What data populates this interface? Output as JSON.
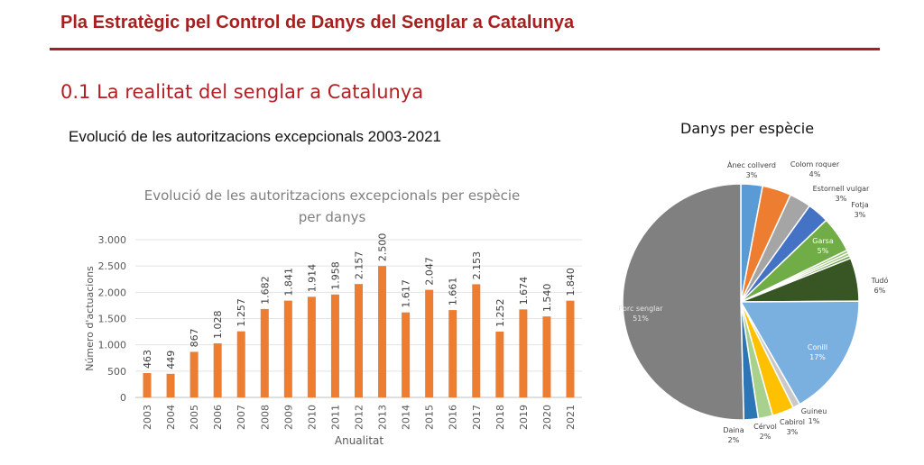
{
  "header": {
    "title": "Pla Estratègic pel Control de Danys del Senglar a Catalunya",
    "section": "0.1 La realitat del senglar a Catalunya",
    "bar_caption": "Evolució de les autoritzacions excepcionals 2003-2021",
    "pie_caption": "Danys per espècie"
  },
  "colors": {
    "accent": "#a81f1f",
    "bar": "#ed7d31"
  },
  "chart_data": [
    {
      "type": "bar",
      "title": "Evolució de les autoritzacions excepcionals per espècie",
      "subtitle": "per danys",
      "xlabel": "Anualitat",
      "ylabel": "Número d'actuacions",
      "ylim": [
        0,
        3000
      ],
      "yticks": [
        0,
        500,
        1000,
        1500,
        2000,
        2500,
        3000
      ],
      "ytick_labels": [
        "0",
        "500",
        "1.000",
        "1.500",
        "2.000",
        "2.500",
        "3.000"
      ],
      "grid": true,
      "categories": [
        "2003",
        "2004",
        "2005",
        "2006",
        "2007",
        "2008",
        "2009",
        "2010",
        "2011",
        "2012",
        "2013",
        "2014",
        "2015",
        "2016",
        "2017",
        "2018",
        "2019",
        "2020",
        "2021"
      ],
      "values": [
        463,
        449,
        867,
        1028,
        1257,
        1682,
        1841,
        1914,
        1958,
        2157,
        2500,
        1617,
        2047,
        1661,
        2153,
        1252,
        1674,
        1540,
        1840
      ],
      "value_labels": [
        "463",
        "449",
        "867",
        "1.028",
        "1.257",
        "1.682",
        "1.841",
        "1.914",
        "1.958",
        "2.157",
        "2.500",
        "1.617",
        "2.047",
        "1.661",
        "2.153",
        "1.252",
        "1.674",
        "1.540",
        "1.840"
      ]
    },
    {
      "type": "pie",
      "slices": [
        {
          "name": "Ànec collverd",
          "label": "3%",
          "value": 3,
          "color": "#5b9bd5"
        },
        {
          "name": "Colom roquer",
          "label": "4%",
          "value": 4,
          "color": "#ed7d31"
        },
        {
          "name": "Estornell vulgar",
          "label": "3%",
          "value": 3,
          "color": "#a5a5a5"
        },
        {
          "name": "Fotja",
          "label": "3%",
          "value": 3,
          "color": "#4472c4"
        },
        {
          "name": "Garsa",
          "label": "5%",
          "value": 5,
          "color": "#70ad47"
        },
        {
          "name": "",
          "label": "",
          "value": 0.4,
          "color": "#8fbf6a"
        },
        {
          "name": "",
          "label": "",
          "value": 0.4,
          "color": "#9dc97f"
        },
        {
          "name": "",
          "label": "",
          "value": 0.4,
          "color": "#6d9e4a"
        },
        {
          "name": "Tudó",
          "label": "6%",
          "value": 6,
          "color": "#375623"
        },
        {
          "name": "Conill",
          "label": "17%",
          "value": 17,
          "color": "#7ab0e0"
        },
        {
          "name": "Guineu",
          "label": "1%",
          "value": 1,
          "color": "#c9c9c9"
        },
        {
          "name": "Cabirol",
          "label": "3%",
          "value": 3,
          "color": "#ffc000"
        },
        {
          "name": "Cérvol",
          "label": "2%",
          "value": 2,
          "color": "#a9d18e"
        },
        {
          "name": "Daina",
          "label": "2%",
          "value": 2,
          "color": "#2e75b6"
        },
        {
          "name": "Porc senglar",
          "label": "51%",
          "value": 51,
          "color": "#808080"
        }
      ]
    }
  ]
}
